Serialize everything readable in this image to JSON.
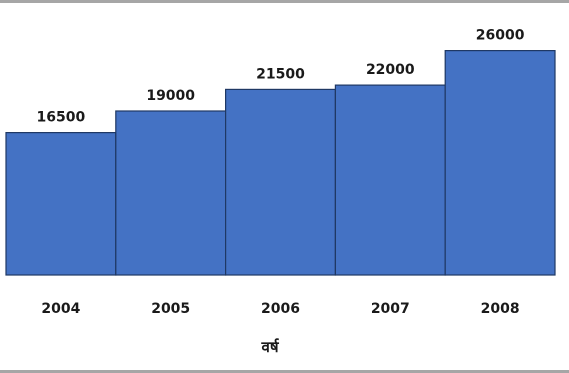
{
  "chart_data": {
    "type": "bar",
    "categories": [
      "2004",
      "2005",
      "2006",
      "2007",
      "2008"
    ],
    "values": [
      16500,
      19000,
      21500,
      22000,
      26000
    ],
    "title": "",
    "xlabel": "वर्ष",
    "ylabel": "",
    "ylim": [
      0,
      28500
    ],
    "grid": false,
    "legend": "none",
    "bar_color": "#4472c4",
    "bar_edge_color": "#1f3864",
    "data_labels": true
  }
}
